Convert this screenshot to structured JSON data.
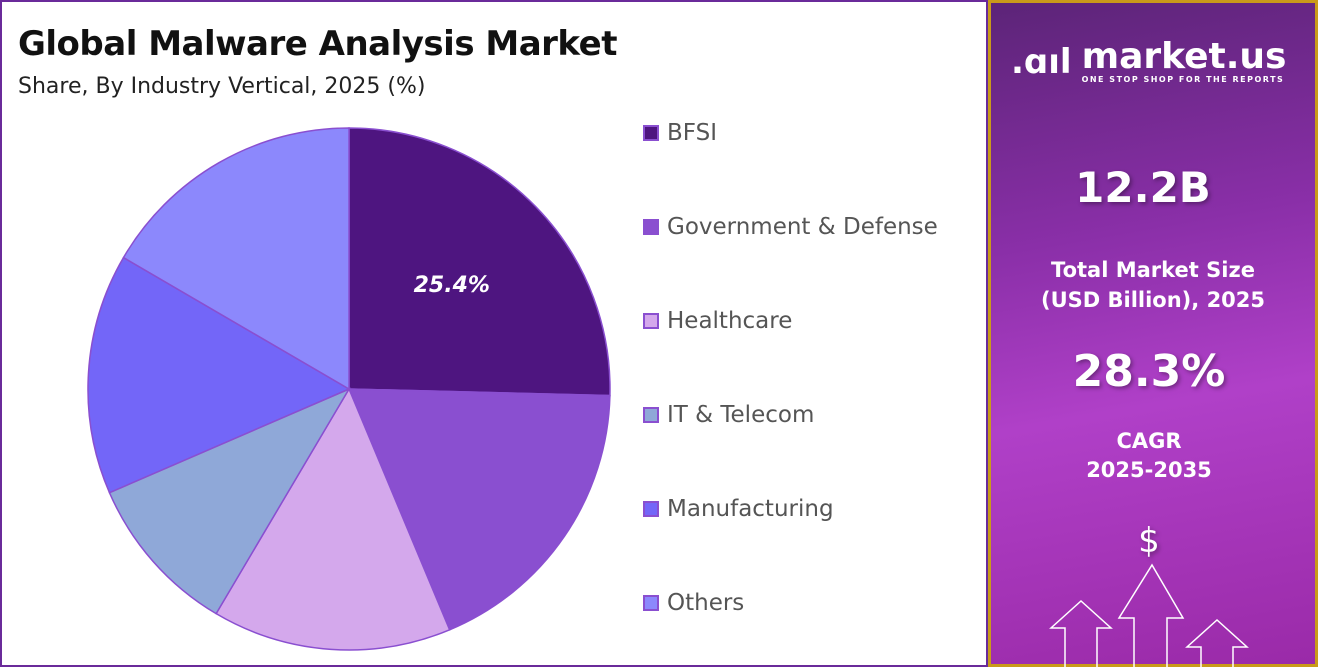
{
  "title": "Global Malware Analysis Market",
  "subtitle": "Share, By Industry Vertical, 2025 (%)",
  "chart_data": {
    "type": "pie",
    "title": "Global Malware Analysis Market",
    "subtitle": "Share, By Industry Vertical, 2025 (%)",
    "categories": [
      "BFSI",
      "Government & Defense",
      "Healthcare",
      "IT & Telecom",
      "Manufacturing",
      "Others"
    ],
    "values": [
      25.4,
      18.3,
      14.8,
      10.0,
      14.9,
      16.6
    ],
    "colors": [
      "#4e1580",
      "#8a4fd0",
      "#d4a8ec",
      "#8fa8d8",
      "#7366f8",
      "#8c88fc"
    ],
    "data_labels": [
      "25.4%",
      "",
      "",
      "",
      "",
      ""
    ],
    "start": "12 o'clock, clockwise",
    "legend_position": "right"
  },
  "panel": {
    "brand": "market.us",
    "tagline": "ONE STOP SHOP FOR THE REPORTS",
    "market_size": "12.2B",
    "market_size_label_1": "Total Market Size",
    "market_size_label_2": "(USD Billion), 2025",
    "cagr": "28.3%",
    "cagr_label_1": "CAGR",
    "cagr_label_2": "2025-2035",
    "dollar": "$"
  }
}
